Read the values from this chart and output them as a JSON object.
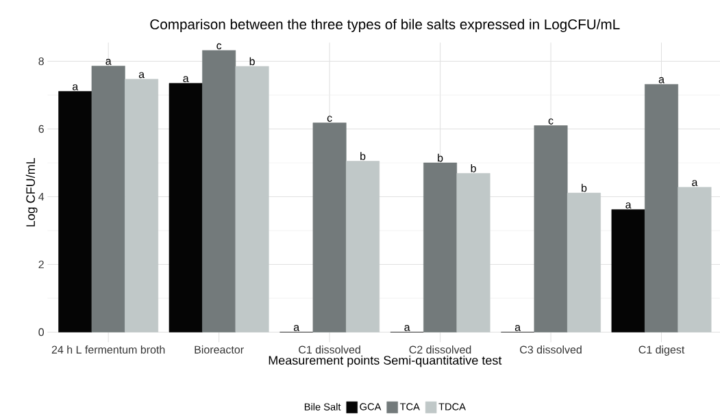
{
  "chart_data": {
    "type": "bar",
    "title": "Comparison between the three types of bile salts expressed in LogCFU/mL",
    "xlabel": "Measurement points Semi-quantitative test",
    "ylabel": "Log CFU/mL",
    "legend_title": "Bile Salt",
    "categories": [
      "24 h L fermentum broth",
      "Bioreactor",
      "C1 dissolved",
      "C2 dissolved",
      "C3 dissolved",
      "C1 digest"
    ],
    "series": [
      {
        "name": "GCA",
        "color": "#050505",
        "values": [
          7.11,
          7.35,
          0,
          0,
          0,
          3.62
        ],
        "value_labels": [
          "a",
          "a",
          "a",
          "a",
          "a",
          "a"
        ]
      },
      {
        "name": "TCA",
        "color": "#737a7b",
        "values": [
          7.86,
          8.32,
          6.18,
          5.0,
          6.1,
          7.32
        ],
        "value_labels": [
          "a",
          "c",
          "c",
          "b",
          "c",
          "a"
        ]
      },
      {
        "name": "TDCA",
        "color": "#c0c8c8",
        "values": [
          7.47,
          7.85,
          5.05,
          4.69,
          4.11,
          4.28
        ],
        "value_labels": [
          "a",
          "b",
          "b",
          "b",
          "b",
          "a"
        ]
      }
    ],
    "ylim": [
      -0.3,
      8.55
    ],
    "yticks": [
      0,
      2,
      4,
      6,
      8
    ],
    "grid": true,
    "legend": "bottom"
  }
}
